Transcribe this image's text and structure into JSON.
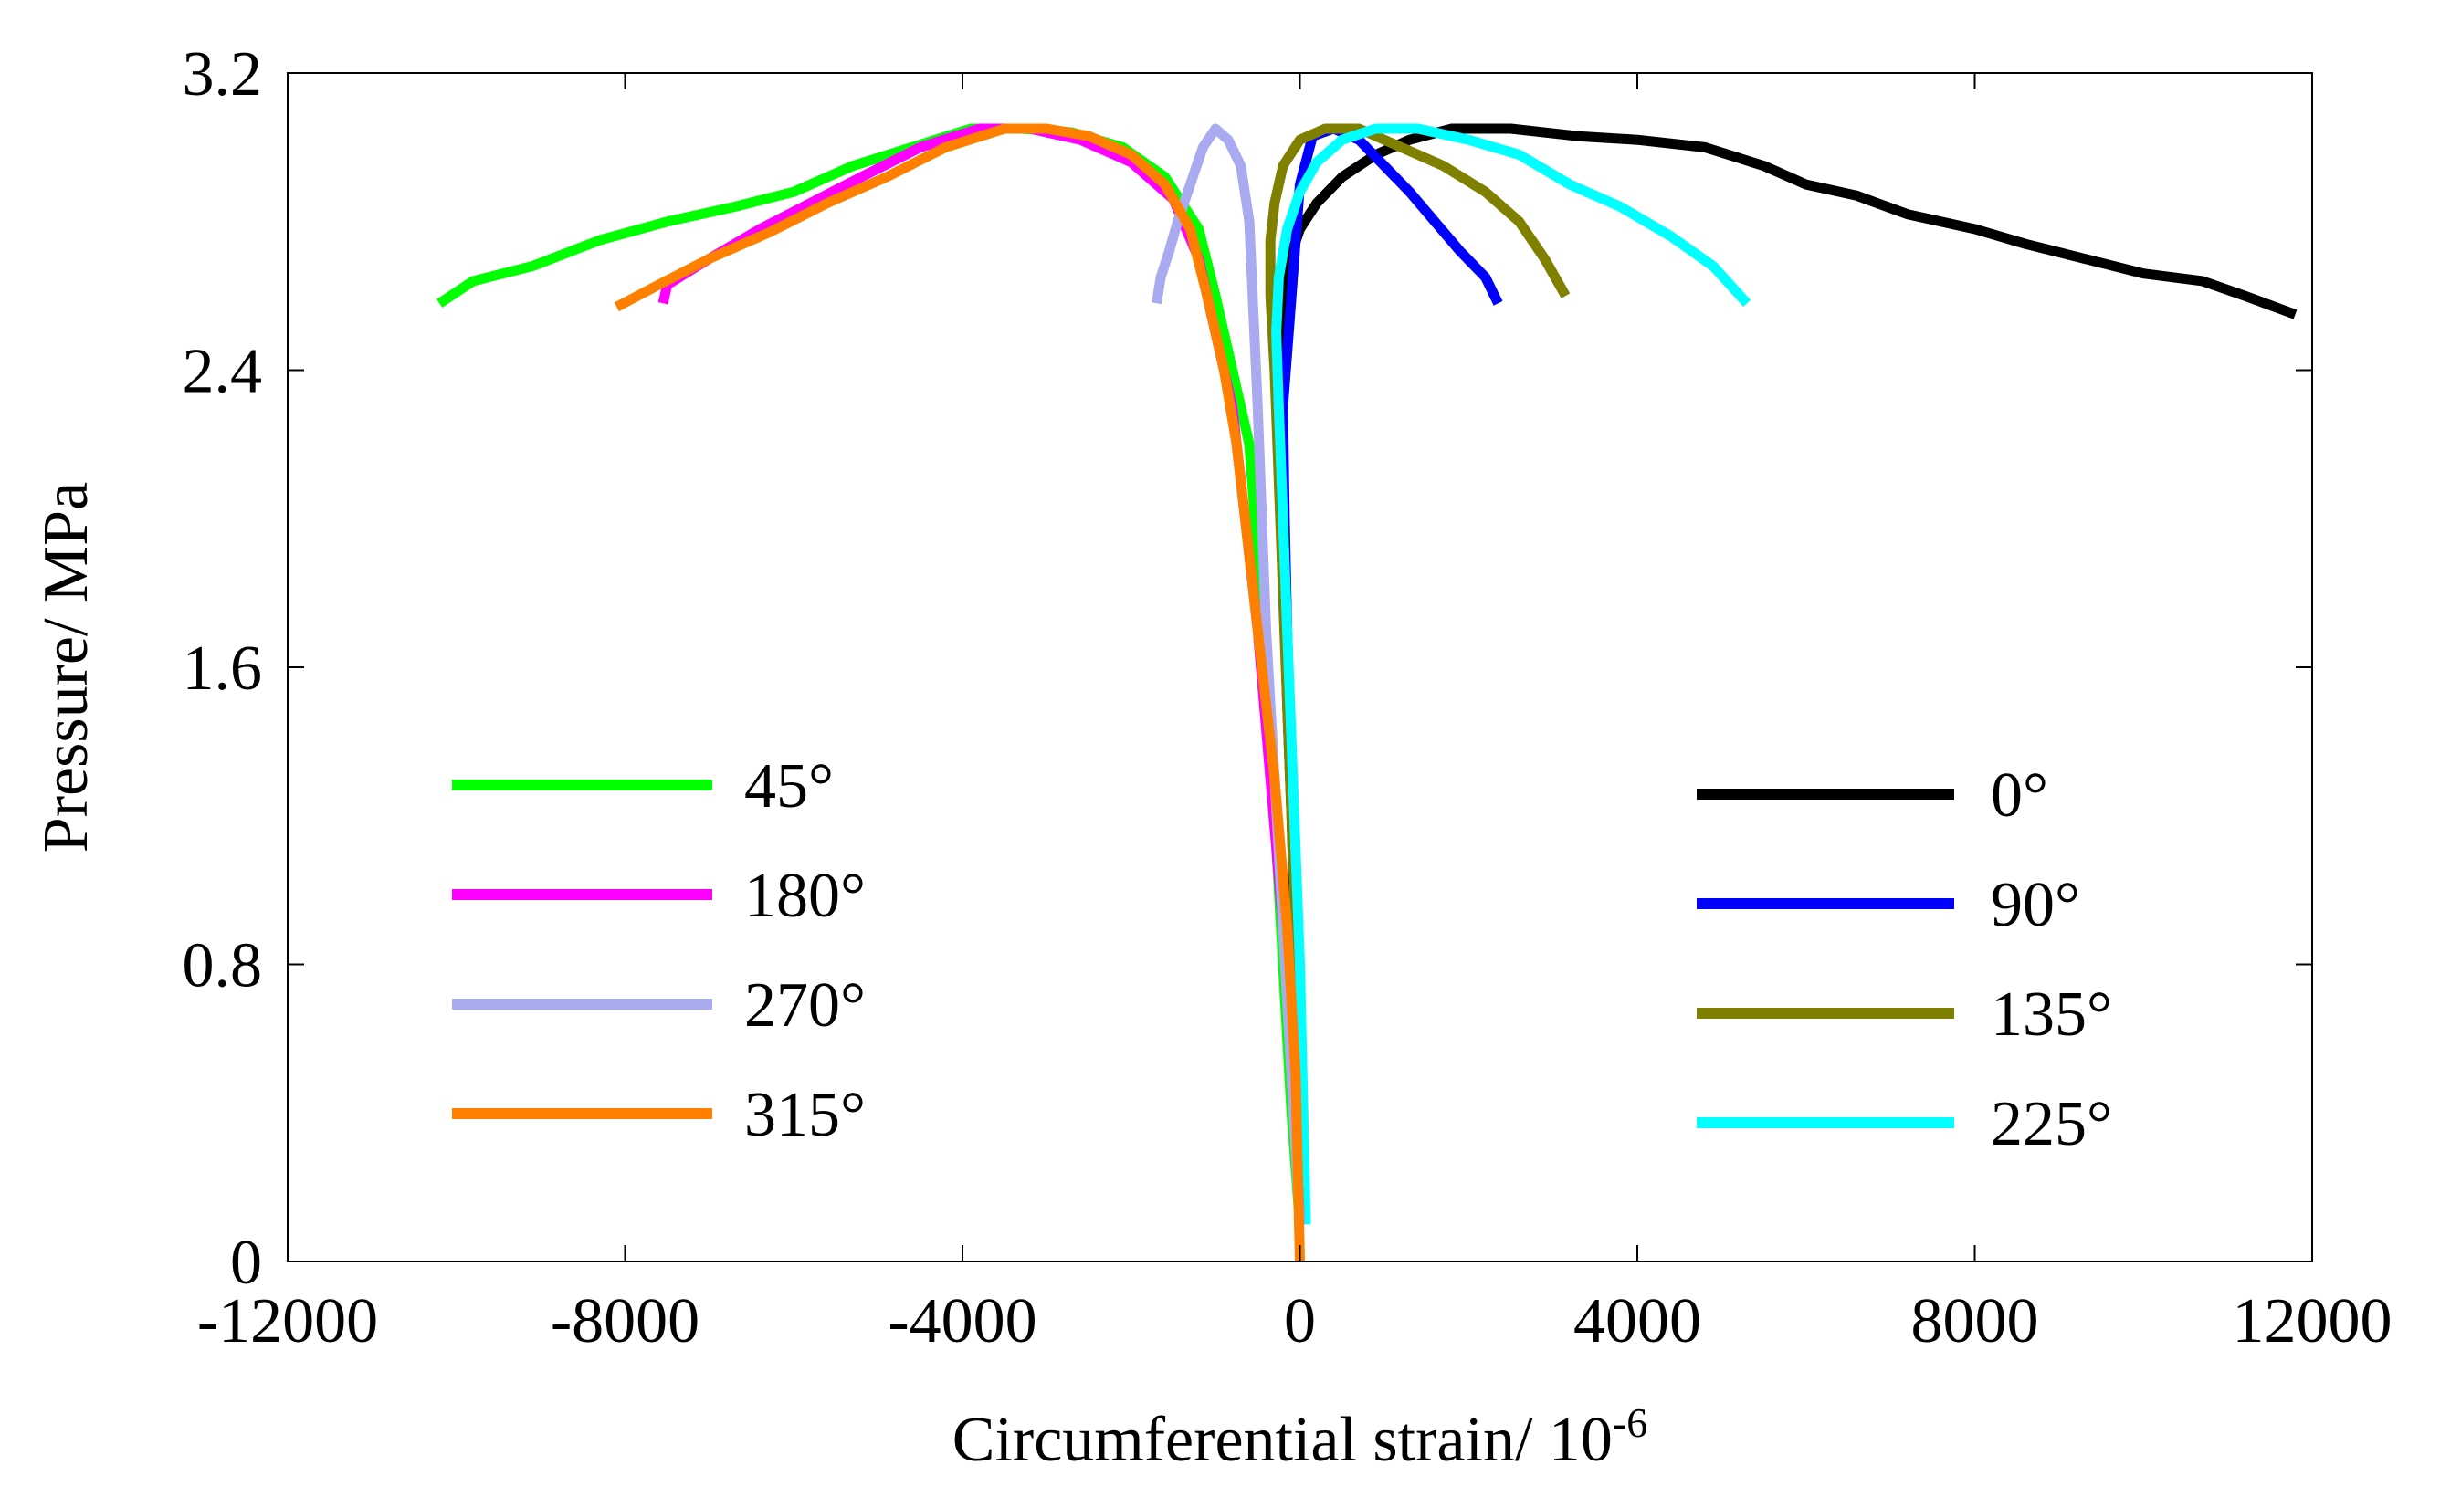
{
  "chart_data": {
    "type": "line",
    "title": "",
    "xlabel": "Circumferential strain/ 10",
    "xlabel_sup": "-6",
    "ylabel": "Pressure/ MPa",
    "xlim": [
      -12000,
      12000
    ],
    "ylim": [
      0,
      3.2
    ],
    "xticks": [
      -12000,
      -8000,
      -4000,
      0,
      4000,
      8000,
      12000
    ],
    "yticks": [
      0,
      0.8,
      1.6,
      2.4,
      3.2
    ],
    "xtick_labels": [
      "-12000",
      "-8000",
      "-4000",
      "0",
      "4000",
      "8000",
      "12000"
    ],
    "ytick_labels": [
      "0",
      "0.8",
      "1.6",
      "2.4",
      "3.2"
    ],
    "grid": false,
    "legend_left": [
      "45°",
      "180°",
      "270°",
      "315°"
    ],
    "legend_right": [
      "0°",
      "90°",
      "135°",
      "225°"
    ],
    "series": [
      {
        "name": "0°",
        "color": "#000000",
        "x": [
          0,
          -30,
          -60,
          -100,
          -150,
          -200,
          -230,
          -250,
          -180,
          -120,
          0,
          200,
          500,
          900,
          1300,
          1800,
          2500,
          3300,
          4000,
          4800,
          5500,
          6000,
          6600,
          7200,
          8000,
          8600,
          9300,
          10000,
          10700,
          11200,
          11800
        ],
        "y": [
          0.1,
          0.5,
          0.9,
          1.2,
          1.5,
          1.9,
          2.2,
          2.4,
          2.6,
          2.7,
          2.78,
          2.85,
          2.92,
          2.98,
          3.02,
          3.05,
          3.05,
          3.03,
          3.02,
          3.0,
          2.95,
          2.9,
          2.87,
          2.82,
          2.78,
          2.74,
          2.7,
          2.66,
          2.64,
          2.6,
          2.55
        ]
      },
      {
        "name": "90°",
        "color": "#0000ff",
        "x": [
          40,
          0,
          -50,
          -100,
          -150,
          -180,
          -200,
          -100,
          0,
          150,
          400,
          700,
          1000,
          1300,
          1600,
          1900,
          2200,
          2350
        ],
        "y": [
          0.2,
          0.6,
          1.0,
          1.3,
          1.7,
          2.0,
          2.3,
          2.6,
          2.9,
          3.03,
          3.05,
          3.02,
          2.95,
          2.88,
          2.8,
          2.72,
          2.65,
          2.58
        ]
      },
      {
        "name": "135°",
        "color": "#808000",
        "x": [
          40,
          0,
          -50,
          -100,
          -150,
          -200,
          -250,
          -300,
          -350,
          -350,
          -300,
          -200,
          0,
          300,
          700,
          1200,
          1700,
          2200,
          2600,
          2900,
          3150
        ],
        "y": [
          0.1,
          0.5,
          0.9,
          1.2,
          1.5,
          1.8,
          2.1,
          2.4,
          2.6,
          2.75,
          2.85,
          2.95,
          3.02,
          3.05,
          3.05,
          3.0,
          2.95,
          2.88,
          2.8,
          2.7,
          2.6
        ]
      },
      {
        "name": "225°",
        "color": "#00ffff",
        "x": [
          70,
          30,
          0,
          -50,
          -100,
          -150,
          -200,
          -250,
          -280,
          -250,
          -150,
          0,
          200,
          500,
          900,
          1400,
          2000,
          2600,
          3200,
          3800,
          4400,
          4900,
          5300
        ],
        "y": [
          0.1,
          0.5,
          0.8,
          1.1,
          1.4,
          1.7,
          2.0,
          2.3,
          2.5,
          2.65,
          2.78,
          2.88,
          2.96,
          3.02,
          3.05,
          3.05,
          3.02,
          2.98,
          2.9,
          2.84,
          2.76,
          2.68,
          2.58
        ]
      },
      {
        "name": "45°",
        "color": "#00ff00",
        "x": [
          0,
          -100,
          -200,
          -300,
          -400,
          -500,
          -600,
          -800,
          -1000,
          -1200,
          -1600,
          -2100,
          -2700,
          -3300,
          -3900,
          -4600,
          -5300,
          -6000,
          -6700,
          -7500,
          -8300,
          -9100,
          -9800,
          -10200
        ],
        "y": [
          0.1,
          0.4,
          0.8,
          1.2,
          1.6,
          1.9,
          2.2,
          2.4,
          2.6,
          2.78,
          2.92,
          3.0,
          3.04,
          3.05,
          3.05,
          3.0,
          2.95,
          2.88,
          2.84,
          2.8,
          2.75,
          2.68,
          2.64,
          2.58
        ]
      },
      {
        "name": "180°",
        "color": "#ff00ff",
        "x": [
          0,
          -80,
          -200,
          -350,
          -500,
          -650,
          -800,
          -1000,
          -1200,
          -1500,
          -2000,
          -2600,
          -3200,
          -3800,
          -4500,
          -5200,
          -5800,
          -6400,
          -7000,
          -7500,
          -7550
        ],
        "y": [
          0.1,
          0.5,
          0.9,
          1.3,
          1.7,
          2.0,
          2.3,
          2.5,
          2.7,
          2.86,
          2.96,
          3.02,
          3.05,
          3.05,
          3.0,
          2.92,
          2.85,
          2.78,
          2.7,
          2.63,
          2.58
        ]
      },
      {
        "name": "270°",
        "color": "#aaaaf0",
        "x": [
          0,
          -100,
          -200,
          -300,
          -400,
          -450,
          -500,
          -550,
          -600,
          -700,
          -850,
          -1000,
          -1150,
          -1300,
          -1450,
          -1550,
          -1650,
          -1700
        ],
        "y": [
          0.1,
          0.5,
          0.9,
          1.3,
          1.7,
          2.0,
          2.3,
          2.55,
          2.8,
          2.95,
          3.02,
          3.05,
          3.0,
          2.9,
          2.8,
          2.72,
          2.65,
          2.58
        ]
      },
      {
        "name": "315°",
        "color": "#ff8000",
        "x": [
          0,
          -50,
          -150,
          -300,
          -450,
          -600,
          -750,
          -900,
          -1100,
          -1300,
          -1600,
          -2000,
          -2500,
          -3000,
          -3500,
          -4200,
          -4900,
          -5600,
          -6300,
          -7000,
          -7600,
          -8100
        ],
        "y": [
          0.0,
          0.5,
          0.9,
          1.3,
          1.6,
          1.9,
          2.2,
          2.4,
          2.6,
          2.78,
          2.9,
          2.98,
          3.03,
          3.05,
          3.05,
          3.0,
          2.92,
          2.85,
          2.77,
          2.7,
          2.63,
          2.57
        ]
      }
    ]
  }
}
